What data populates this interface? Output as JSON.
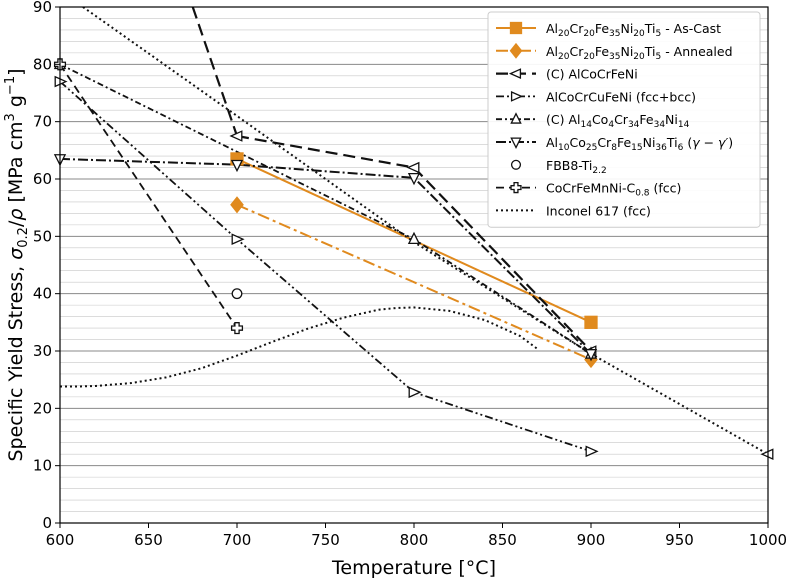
{
  "chart_data": {
    "type": "line",
    "xlabel": "Temperature [°C]",
    "ylabel": "Specific Yield Stress, σ0.2/ρ [MPa cm³ g⁻¹]",
    "ylabel_parts": [
      "Specific Yield Stress, ",
      "σ",
      "0.2",
      "/",
      "ρ",
      " [MPa cm",
      "3",
      " g",
      "−1",
      "]"
    ],
    "xlim": [
      600,
      1000
    ],
    "ylim": [
      0,
      90
    ],
    "xticks": [
      600,
      650,
      700,
      750,
      800,
      850,
      900,
      950,
      1000
    ],
    "yticks": [
      0,
      10,
      20,
      30,
      40,
      50,
      60,
      70,
      80,
      90
    ],
    "grid": "horizontal major and minor",
    "legend_position": "top-right",
    "series": [
      {
        "name": "Al20Cr20Fe35Ni20Ti5 - As-Cast",
        "name_parts": [
          [
            "Al",
            ""
          ],
          [
            "20",
            "sub"
          ],
          [
            "Cr",
            ""
          ],
          [
            "20",
            "sub"
          ],
          [
            "Fe",
            ""
          ],
          [
            "35",
            "sub"
          ],
          [
            "Ni",
            ""
          ],
          [
            "20",
            "sub"
          ],
          [
            "Ti",
            ""
          ],
          [
            "5",
            "sub"
          ],
          [
            " - As-Cast",
            ""
          ]
        ],
        "color": "#e08a1e",
        "dash": "",
        "width": 2,
        "marker": "square",
        "marker_fill": "#e08a1e",
        "points": [
          [
            700,
            63.5
          ],
          [
            900,
            35
          ]
        ]
      },
      {
        "name": "Al20Cr20Fe35Ni20Ti5 - Annealed",
        "name_parts": [
          [
            "Al",
            ""
          ],
          [
            "20",
            "sub"
          ],
          [
            "Cr",
            ""
          ],
          [
            "20",
            "sub"
          ],
          [
            "Fe",
            ""
          ],
          [
            "35",
            "sub"
          ],
          [
            "Ni",
            ""
          ],
          [
            "20",
            "sub"
          ],
          [
            "Ti",
            ""
          ],
          [
            "5",
            "sub"
          ],
          [
            " - Annealed",
            ""
          ]
        ],
        "color": "#e08a1e",
        "dash": "12,4,3,4",
        "width": 2,
        "marker": "diamond",
        "marker_fill": "#e08a1e",
        "points": [
          [
            700,
            55.5
          ],
          [
            900,
            28.5
          ]
        ]
      },
      {
        "name": "(C) AlCoCrFeNi",
        "name_parts": [
          [
            "(C) AlCoCrFeNi",
            ""
          ]
        ],
        "color": "#111111",
        "dash": "12,6",
        "width": 2.2,
        "marker": "triangle-left",
        "marker_fill": "#ffffff",
        "points": [
          [
            700,
            67.5
          ],
          [
            800,
            62
          ],
          [
            900,
            30
          ]
        ]
      },
      {
        "name": "AlCoCrCuFeNi (fcc+bcc)",
        "name_parts": [
          [
            "AlCoCrCuFeNi (fcc+bcc)",
            ""
          ]
        ],
        "color": "#111111",
        "dash": "8,3,2,3,2,3",
        "width": 1.8,
        "marker": "triangle-right",
        "marker_fill": "#ffffff",
        "points": [
          [
            600,
            77
          ],
          [
            700,
            49.5
          ],
          [
            800,
            22.8
          ],
          [
            900,
            12.5
          ]
        ]
      },
      {
        "name": "(C) Al14Co4Cr34Fe34Ni14",
        "name_parts": [
          [
            "(C) Al",
            ""
          ],
          [
            "14",
            "sub"
          ],
          [
            "Co",
            ""
          ],
          [
            "4",
            "sub"
          ],
          [
            "Cr",
            ""
          ],
          [
            "34",
            "sub"
          ],
          [
            "Fe",
            ""
          ],
          [
            "34",
            "sub"
          ],
          [
            "Ni",
            ""
          ],
          [
            "14",
            "sub"
          ]
        ],
        "color": "#111111",
        "dash": "6,3,2,3",
        "width": 1.8,
        "marker": "triangle-up",
        "marker_fill": "#ffffff",
        "points": [
          [
            600,
            80
          ],
          [
            800,
            49.5
          ],
          [
            900,
            29.5
          ]
        ]
      },
      {
        "name": "Al10Co25Cr8Fe15Ni36Ti6 (γ − γ′)",
        "name_parts": [
          [
            "Al",
            ""
          ],
          [
            "10",
            "sub"
          ],
          [
            "Co",
            ""
          ],
          [
            "25",
            "sub"
          ],
          [
            "Cr",
            ""
          ],
          [
            "8",
            "sub"
          ],
          [
            "Fe",
            ""
          ],
          [
            "15",
            "sub"
          ],
          [
            "Ni",
            ""
          ],
          [
            "36",
            "sub"
          ],
          [
            "Ti",
            ""
          ],
          [
            "6",
            "sub"
          ],
          [
            " (",
            ""
          ],
          [
            "γ − γ′",
            "it"
          ],
          [
            ")",
            ""
          ]
        ],
        "color": "#111111",
        "dash": "10,3,2,3",
        "width": 2,
        "marker": "triangle-down",
        "marker_fill": "#ffffff",
        "points": [
          [
            600,
            63.5
          ],
          [
            700,
            62.5
          ],
          [
            800,
            60.2
          ],
          [
            900,
            29.5
          ]
        ]
      },
      {
        "name": "FBB8-Ti2.2",
        "name_parts": [
          [
            "FBB8-Ti",
            ""
          ],
          [
            "2.2",
            "sub"
          ]
        ],
        "color": "#111111",
        "dash": "none",
        "width": 0,
        "marker": "circle",
        "marker_fill": "#ffffff",
        "points": [
          [
            700,
            40
          ]
        ]
      },
      {
        "name": "CoCrFeMnNi-C0.8 (fcc)",
        "name_parts": [
          [
            "CoCrFeMnNi-C",
            ""
          ],
          [
            "0.8",
            "sub"
          ],
          [
            " (fcc)",
            ""
          ]
        ],
        "color": "#111111",
        "dash": "8,5",
        "width": 1.8,
        "marker": "plus",
        "marker_fill": "#ffffff",
        "points": [
          [
            600,
            80
          ],
          [
            700,
            34
          ]
        ]
      },
      {
        "name": "Inconel 617 (fcc)",
        "name_parts": [
          [
            "Inconel 617 (fcc)",
            ""
          ]
        ],
        "color": "#111111",
        "dash": "2,3",
        "width": 2,
        "marker": "none",
        "marker_fill": "#ffffff",
        "points": [
          [
            600,
            23.8
          ],
          [
            610,
            23.8
          ],
          [
            620,
            23.9
          ],
          [
            640,
            24.4
          ],
          [
            660,
            25.4
          ],
          [
            680,
            27
          ],
          [
            700,
            29.2
          ],
          [
            720,
            31.6
          ],
          [
            740,
            33.9
          ],
          [
            760,
            35.8
          ],
          [
            780,
            37.2
          ],
          [
            790,
            37.5
          ],
          [
            800,
            37.6
          ],
          [
            820,
            37
          ],
          [
            840,
            35.4
          ],
          [
            860,
            32.6
          ],
          [
            870,
            30.3
          ]
        ]
      },
      {
        "name": "",
        "name_parts": [],
        "color": "#111111",
        "dash": "2,3",
        "width": 2,
        "marker": "none",
        "marker_fill": "#ffffff",
        "legend": false,
        "points": [
          [
            613,
            90
          ],
          [
            700,
            71
          ],
          [
            800,
            49
          ],
          [
            900,
            29.5
          ],
          [
            1000,
            12
          ]
        ]
      },
      {
        "name": "",
        "name_parts": [],
        "color": "#111111",
        "dash": "12,6",
        "width": 2.2,
        "marker": "none",
        "marker_fill": "#ffffff",
        "legend": false,
        "points": [
          [
            675,
            90
          ],
          [
            700,
            67.5
          ]
        ]
      },
      {
        "name": "",
        "name_parts": [],
        "color": "#111111",
        "dash": "6,3,2,3",
        "width": 1.8,
        "marker": "triangle-left",
        "marker_fill": "#ffffff",
        "legend": false,
        "points": [
          [
            1000,
            12
          ]
        ]
      }
    ]
  }
}
